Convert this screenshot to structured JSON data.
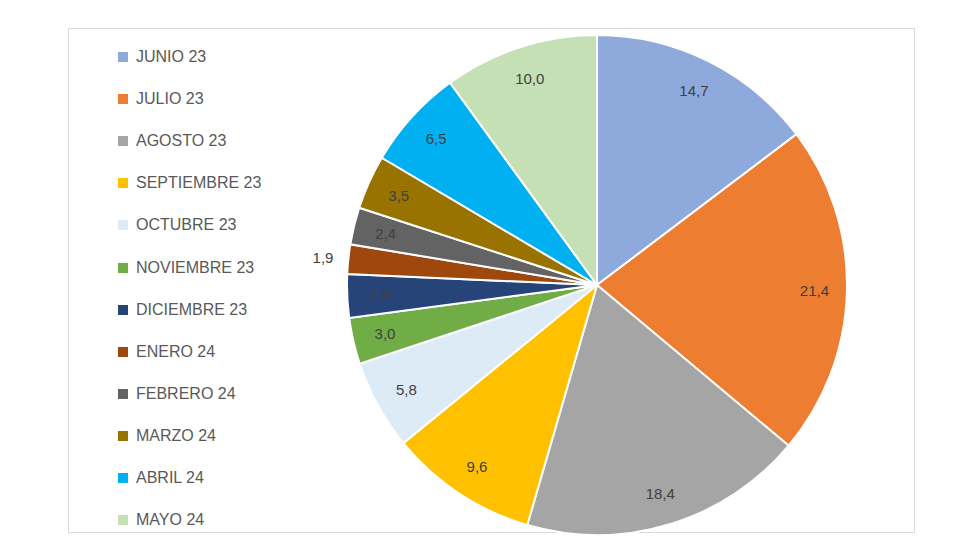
{
  "chart_data": {
    "type": "pie",
    "categories": [
      "JUNIO 23",
      "JULIO 23",
      "AGOSTO 23",
      "SEPTIEMBRE 23",
      "OCTUBRE 23",
      "NOVIEMBRE 23",
      "DICIEMBRE 23",
      "ENERO 24",
      "FEBRERO 24",
      "MARZO 24",
      "ABRIL 24",
      "MAYO 24"
    ],
    "values": [
      14.7,
      21.4,
      18.4,
      9.6,
      5.8,
      3.0,
      2.8,
      1.9,
      2.4,
      3.5,
      6.5,
      10.0
    ],
    "value_labels": [
      "14,7",
      "21,4",
      "18,4",
      "9,6",
      "5,8",
      "3,0",
      "2,8",
      "1,9",
      "2,4",
      "3,5",
      "6,5",
      "10,0"
    ],
    "colors": [
      "#8EA9DB",
      "#ED7D31",
      "#A5A5A5",
      "#FFC000",
      "#DDEBF7",
      "#70AD47",
      "#264478",
      "#9E480E",
      "#636363",
      "#997300",
      "#00B0F0",
      "#C5E0B4"
    ],
    "legend": "left",
    "data_labels": true
  }
}
